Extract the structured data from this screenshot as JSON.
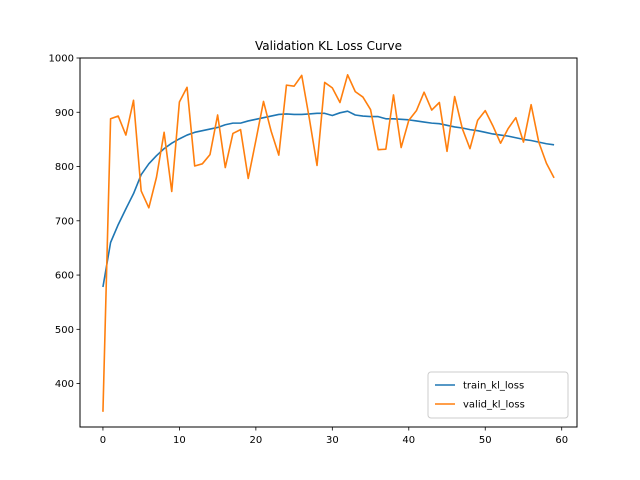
{
  "chart_data": {
    "type": "line",
    "title": "Validation KL Loss Curve",
    "xlabel": "",
    "ylabel": "",
    "xlim": [
      -3,
      62
    ],
    "ylim": [
      320,
      1000
    ],
    "xticks": [
      0,
      10,
      20,
      30,
      40,
      50,
      60
    ],
    "yticks": [
      400,
      500,
      600,
      700,
      800,
      900,
      1000
    ],
    "grid": false,
    "legend_position": "lower-right",
    "series": [
      {
        "name": "train_kl_loss",
        "color": "#1f77b4",
        "x": [
          0,
          1,
          2,
          3,
          4,
          5,
          6,
          7,
          8,
          9,
          10,
          11,
          12,
          13,
          14,
          15,
          16,
          17,
          18,
          19,
          20,
          21,
          22,
          23,
          24,
          25,
          26,
          27,
          28,
          29,
          30,
          31,
          32,
          33,
          34,
          35,
          36,
          37,
          38,
          39,
          40,
          41,
          42,
          43,
          44,
          45,
          46,
          47,
          48,
          49,
          50,
          51,
          52,
          53,
          54,
          55,
          56,
          57,
          58,
          59
        ],
        "values": [
          578,
          660,
          693,
          722,
          750,
          785,
          805,
          820,
          833,
          843,
          851,
          858,
          863,
          866,
          869,
          872,
          877,
          880,
          880,
          884,
          887,
          890,
          893,
          896,
          897,
          896,
          896,
          897,
          898,
          898,
          894,
          899,
          902,
          895,
          893,
          892,
          892,
          888,
          888,
          887,
          886,
          884,
          882,
          880,
          879,
          876,
          873,
          871,
          868,
          866,
          863,
          860,
          858,
          856,
          853,
          850,
          848,
          845,
          842,
          840
        ]
      },
      {
        "name": "valid_kl_loss",
        "color": "#ff7f0e",
        "x": [
          0,
          1,
          2,
          3,
          4,
          5,
          6,
          7,
          8,
          9,
          10,
          11,
          12,
          13,
          14,
          15,
          16,
          17,
          18,
          19,
          20,
          21,
          22,
          23,
          24,
          25,
          26,
          27,
          28,
          29,
          30,
          31,
          32,
          33,
          34,
          35,
          36,
          37,
          38,
          39,
          40,
          41,
          42,
          43,
          44,
          45,
          46,
          47,
          48,
          49,
          50,
          51,
          52,
          53,
          54,
          55,
          56,
          57,
          58,
          59
        ],
        "values": [
          348,
          888,
          893,
          858,
          922,
          755,
          724,
          780,
          863,
          754,
          919,
          946,
          801,
          805,
          822,
          895,
          798,
          861,
          868,
          778,
          848,
          920,
          865,
          821,
          950,
          948,
          968,
          888,
          802,
          955,
          945,
          918,
          969,
          938,
          928,
          905,
          831,
          832,
          932,
          835,
          885,
          903,
          937,
          904,
          918,
          828,
          929,
          870,
          833,
          885,
          903,
          875,
          843,
          870,
          890,
          845,
          914,
          845,
          806,
          779
        ]
      }
    ]
  }
}
